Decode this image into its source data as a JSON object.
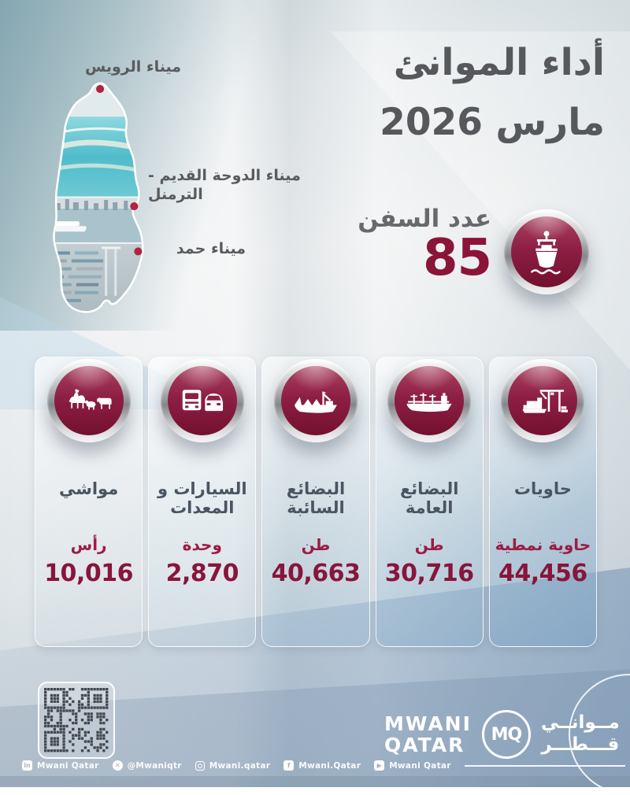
{
  "title": {
    "line1": "أداء الموانئ",
    "line2": "مارس 2026"
  },
  "map": {
    "ports": [
      {
        "name": "ميناء الرويس"
      },
      {
        "name": "ميناء الدوحة القديم - الترمنل"
      },
      {
        "name": "ميناء حمد"
      }
    ]
  },
  "ships": {
    "label": "عدد السفن",
    "value": "85"
  },
  "stats": [
    {
      "id": "containers",
      "label": "حاويات",
      "unit": "حاوية نمطية",
      "value": "44,456"
    },
    {
      "id": "general-cargo",
      "label": "البضائع العامة",
      "unit": "طن",
      "value": "30,716"
    },
    {
      "id": "bulk-cargo",
      "label": "البضائع السائبة",
      "unit": "طن",
      "value": "40,663"
    },
    {
      "id": "vehicles",
      "label": "السيارات و المعدات",
      "unit": "وحدة",
      "value": "2,870"
    },
    {
      "id": "livestock",
      "label": "مواشي",
      "unit": "رأس",
      "value": "10,016"
    }
  ],
  "logo": {
    "en_line1": "MWANI",
    "en_line2": "QATAR",
    "mq": "MQ",
    "ar_line1": "مــوانــي",
    "ar_line2": "قـــطـــر"
  },
  "footer": {
    "social": [
      {
        "icon": "linkedin-icon",
        "label": "Mwani Qatar"
      },
      {
        "icon": "x-icon",
        "label": "@Mwaniqtr"
      },
      {
        "icon": "instagram-icon",
        "label": "Mwani.qatar"
      },
      {
        "icon": "facebook-icon",
        "label": "Mwani.Qatar"
      },
      {
        "icon": "youtube-icon",
        "label": "Mwani Qatar"
      }
    ]
  },
  "colors": {
    "maroon": "#8A1538",
    "maroon_light": "#A63F5D",
    "title_gray": "#56585B",
    "label_slate": "#4A5561",
    "marker_red": "#B12340"
  },
  "chart_data": {
    "type": "table",
    "title": "أداء الموانئ مارس 2026",
    "categories": [
      "عدد السفن",
      "حاويات",
      "البضائع العامة",
      "البضائع السائبة",
      "السيارات و المعدات",
      "مواشي"
    ],
    "units": [
      "",
      "حاوية نمطية",
      "طن",
      "طن",
      "وحدة",
      "رأس"
    ],
    "values": [
      85,
      44456,
      30716,
      40663,
      2870,
      10016
    ],
    "ports": [
      "ميناء الرويس",
      "ميناء الدوحة القديم - الترمنل",
      "ميناء حمد"
    ]
  }
}
